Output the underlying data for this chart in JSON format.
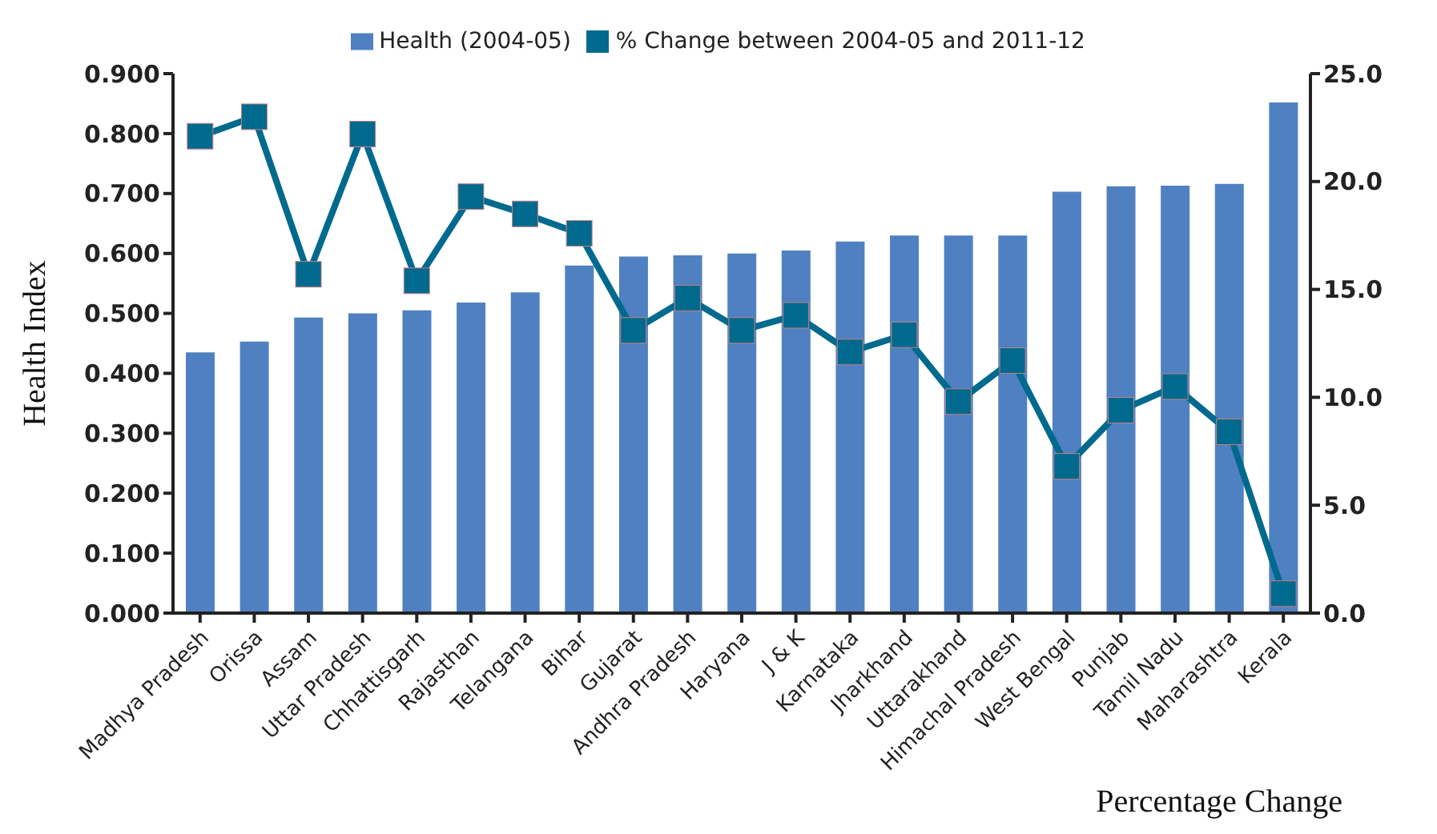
{
  "chart_data": {
    "type": "bar",
    "categories": [
      "Madhya Pradesh",
      "Orissa",
      "Assam",
      "Uttar Pradesh",
      "Chhattisgarh",
      "Rajasthan",
      "Telangana",
      "Bihar",
      "Gujarat",
      "Andhra Pradesh",
      "Haryana",
      "J & K",
      "Karnataka",
      "Jharkhand",
      "Uttarakhand",
      "Himachal Pradesh",
      "West Bengal",
      "Punjab",
      "Tamil Nadu",
      "Maharashtra",
      "Kerala"
    ],
    "series": [
      {
        "name": "Health (2004-05)",
        "color": "#4f81c2",
        "values": [
          0.435,
          0.453,
          0.493,
          0.5,
          0.505,
          0.518,
          0.535,
          0.58,
          0.595,
          0.597,
          0.6,
          0.605,
          0.62,
          0.63,
          0.63,
          0.63,
          0.703,
          0.712,
          0.713,
          0.716,
          0.852
        ]
      },
      {
        "name": "% Change between 2004-05 and 2011-12",
        "type": "line",
        "axis": "y2",
        "color": "#006a8e",
        "marker": "square",
        "values": [
          22.1,
          23.0,
          15.7,
          22.2,
          15.4,
          19.3,
          18.5,
          17.6,
          13.1,
          14.6,
          13.1,
          13.8,
          12.1,
          12.9,
          9.8,
          11.7,
          6.8,
          9.4,
          10.5,
          8.4,
          0.9
        ]
      }
    ],
    "ylabel": "Health Index",
    "annotations": [
      "Percentage Change"
    ],
    "ylim": [
      0,
      0.9
    ],
    "yticks": [
      {
        "value": 0,
        "label": "0.000"
      },
      {
        "value": 0.1,
        "label": "0.100"
      },
      {
        "value": 0.2,
        "label": "0.200"
      },
      {
        "value": 0.3,
        "label": "0.300"
      },
      {
        "value": 0.4,
        "label": "0.400"
      },
      {
        "value": 0.5,
        "label": "0.500"
      },
      {
        "value": 0.6,
        "label": "0.600"
      },
      {
        "value": 0.7,
        "label": "0.700"
      },
      {
        "value": 0.8,
        "label": "0.800"
      },
      {
        "value": 0.9,
        "label": "0.900"
      }
    ],
    "y2lim": [
      0,
      25
    ],
    "y2ticks": [
      {
        "value": 0,
        "label": "0.0"
      },
      {
        "value": 5,
        "label": "5.0"
      },
      {
        "value": 10,
        "label": "10.0"
      },
      {
        "value": 15,
        "label": "15.0"
      },
      {
        "value": 20,
        "label": "20.0"
      },
      {
        "value": 25,
        "label": "25.0"
      }
    ],
    "grid": false,
    "legend": "top"
  }
}
